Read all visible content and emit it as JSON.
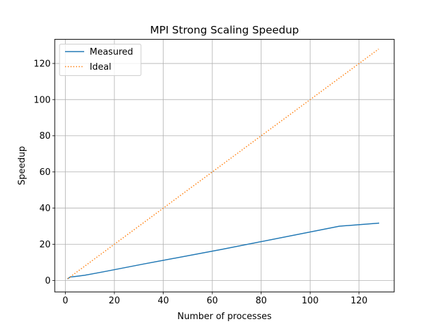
{
  "chart_data": {
    "type": "line",
    "title": "MPI Strong Scaling Speedup",
    "xlabel": "Number of processes",
    "ylabel": "Speedup",
    "xlim": [
      -4.35,
      134.35
    ],
    "ylim": [
      -6.35,
      133.35
    ],
    "xticks": [
      0,
      20,
      40,
      60,
      80,
      100,
      120
    ],
    "yticks": [
      0,
      20,
      40,
      60,
      80,
      100,
      120
    ],
    "grid": true,
    "legend_position": "top-left",
    "series": [
      {
        "name": "Measured",
        "color": "#1f77b4",
        "style": "solid",
        "x": [
          1,
          2,
          4,
          8,
          16,
          32,
          64,
          112,
          128
        ],
        "y": [
          1,
          1.9,
          2.2,
          2.9,
          4.9,
          9.1,
          17.2,
          30,
          31.7
        ]
      },
      {
        "name": "Ideal",
        "color": "#ff7f0e",
        "style": "dotted",
        "x": [
          1,
          128
        ],
        "y": [
          1,
          128
        ]
      }
    ]
  }
}
